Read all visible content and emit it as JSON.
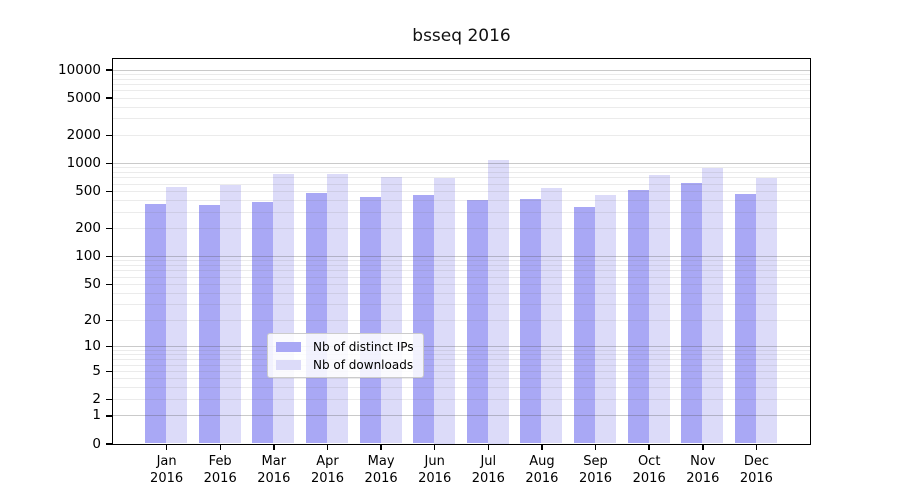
{
  "title": "bsseq 2016",
  "chart_data": {
    "type": "bar",
    "title": "bsseq 2016",
    "categories": [
      "Jan",
      "Feb",
      "Mar",
      "Apr",
      "May",
      "Jun",
      "Jul",
      "Aug",
      "Sep",
      "Oct",
      "Nov",
      "Dec"
    ],
    "year": "2016",
    "series": [
      {
        "name": "Nb of distinct IPs",
        "color": "#a9a8f5",
        "values": [
          360,
          355,
          385,
          480,
          430,
          450,
          405,
          410,
          335,
          510,
          615,
          470
        ]
      },
      {
        "name": "Nb of downloads",
        "color": "#dcdbf9",
        "values": [
          550,
          575,
          755,
          755,
          710,
          690,
          1075,
          535,
          455,
          750,
          880,
          685
        ]
      }
    ],
    "yscale": "log10(value+1)",
    "ylim": [
      0,
      10000
    ],
    "yticks": [
      0,
      1,
      2,
      5,
      10,
      20,
      50,
      100,
      200,
      500,
      1000,
      2000,
      5000,
      10000
    ],
    "grid": "horizontal major and minor gridlines",
    "legend_position": "bottom-center"
  },
  "colors": {
    "bar_ips": "#a9a8f5",
    "bar_downloads": "#dcdbf9",
    "major_grid": "rgba(80,80,80,0.30)",
    "minor_grid": "rgba(110,110,110,0.14)",
    "axis": "#000000",
    "legend_border": "#cccccc"
  }
}
